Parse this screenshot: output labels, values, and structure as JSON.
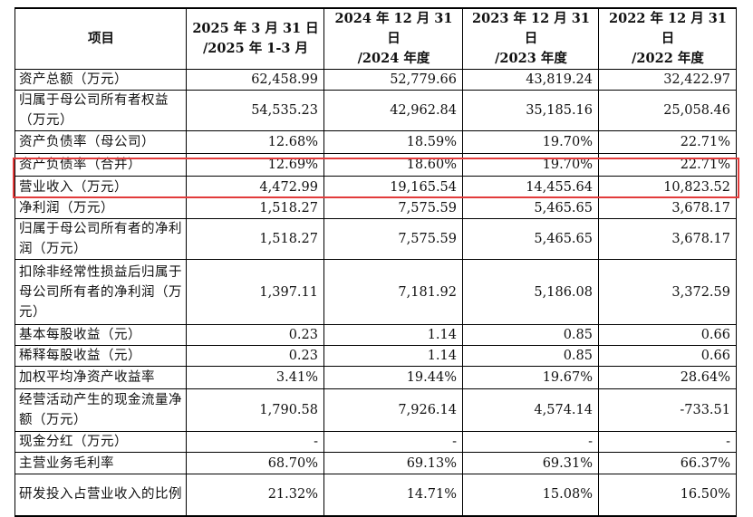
{
  "table": {
    "header": {
      "item": "项目",
      "columns": [
        [
          "2025 年 3 月 31 日",
          "/2025 年 1-3 月"
        ],
        [
          "2024 年 12 月 31 日",
          "/2024 年度"
        ],
        [
          "2023 年 12 月 31 日",
          "/2023 年度"
        ],
        [
          "2022 年 12 月 31 日",
          "/2022 年度"
        ]
      ]
    },
    "rows": [
      [
        "资产总额（万元）",
        "62,458.99",
        "52,779.66",
        "43,819.24",
        "32,422.97"
      ],
      [
        "归属于母公司所有者权益（万元）",
        "54,535.23",
        "42,962.84",
        "35,185.16",
        "25,058.46"
      ],
      [
        "资产负债率（母公司）",
        "12.68%",
        "18.59%",
        "19.70%",
        "22.71%"
      ],
      [
        "资产负债率（合并）",
        "12.69%",
        "18.60%",
        "19.70%",
        "22.71%"
      ],
      [
        "营业收入（万元）",
        "4,472.99",
        "19,165.54",
        "14,455.64",
        "10,823.52"
      ],
      [
        "净利润（万元）",
        "1,518.27",
        "7,575.59",
        "5,465.65",
        "3,678.17"
      ],
      [
        "归属于母公司所有者的净利润（万元）",
        "1,518.27",
        "7,575.59",
        "5,465.65",
        "3,678.17"
      ],
      [
        "扣除非经常性损益后归属于母公司所有者的净利润（万元）",
        "1,397.11",
        "7,181.92",
        "5,186.08",
        "3,372.59"
      ],
      [
        "基本每股收益（元）",
        "0.23",
        "1.14",
        "0.85",
        "0.66"
      ],
      [
        "稀释每股收益（元）",
        "0.23",
        "1.14",
        "0.85",
        "0.66"
      ],
      [
        "加权平均净资产收益率",
        "3.41%",
        "19.44%",
        "19.67%",
        "28.64%"
      ],
      [
        "经营活动产生的现金流量净额（万元）",
        "1,790.58",
        "7,926.14",
        "4,574.14",
        "-733.51"
      ],
      [
        "现金分红（万元）",
        "-",
        "-",
        "-",
        "-"
      ],
      [
        "主营业务毛利率",
        "68.70%",
        "69.13%",
        "69.31%",
        "66.37%"
      ],
      [
        "研发投入占营业收入的比例",
        "21.32%",
        "14.71%",
        "15.08%",
        "16.50%"
      ]
    ]
  }
}
